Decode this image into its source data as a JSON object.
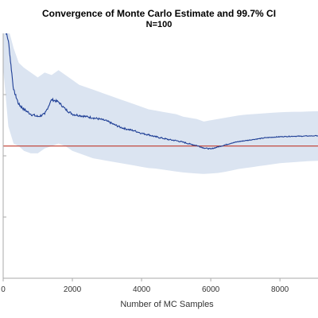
{
  "chart_data": {
    "type": "line",
    "title": "Convergence of Monte Carlo Estimate and 99.7% CI",
    "subtitle": "N=100",
    "xlabel": "Number of MC Samples",
    "ylabel": "",
    "xlim": [
      0,
      9100
    ],
    "xticks": [
      0,
      2000,
      4000,
      6000,
      8000
    ],
    "ylim": [
      0,
      1
    ],
    "grid": false,
    "legend": "none",
    "reference_line": {
      "y": 0.54
    },
    "series": [
      {
        "x": [
          0,
          150,
          300,
          450,
          600,
          800,
          1000,
          1200,
          1400,
          1600,
          1800,
          2000,
          2200,
          2400,
          2600,
          2800,
          3000,
          3200,
          3400,
          3600,
          3800,
          4000,
          4200,
          4400,
          4600,
          4800,
          5000,
          5200,
          5400,
          5600,
          5800,
          6000,
          6200,
          6400,
          6600,
          6800,
          7000,
          7200,
          7400,
          7600,
          7800,
          8000,
          8200,
          8400,
          8600,
          8800,
          9100
        ],
        "values": [
          1.05,
          0.97,
          0.77,
          0.71,
          0.69,
          0.67,
          0.66,
          0.67,
          0.73,
          0.72,
          0.69,
          0.67,
          0.665,
          0.66,
          0.655,
          0.65,
          0.642,
          0.628,
          0.616,
          0.608,
          0.602,
          0.592,
          0.586,
          0.578,
          0.572,
          0.566,
          0.562,
          0.556,
          0.548,
          0.542,
          0.532,
          0.528,
          0.536,
          0.544,
          0.552,
          0.558,
          0.562,
          0.566,
          0.57,
          0.574,
          0.576,
          0.578,
          0.579,
          0.58,
          0.58,
          0.581,
          0.582
        ]
      }
    ],
    "ci_band": {
      "x": [
        0,
        150,
        300,
        450,
        600,
        800,
        1000,
        1200,
        1400,
        1600,
        1800,
        2000,
        2200,
        2400,
        2600,
        2800,
        3000,
        3200,
        3400,
        3600,
        3800,
        4000,
        4200,
        4400,
        4600,
        4800,
        5000,
        5200,
        5400,
        5600,
        5800,
        6000,
        6200,
        6400,
        6600,
        6800,
        7000,
        7200,
        7400,
        7600,
        7800,
        8000,
        8200,
        8400,
        8600,
        8800,
        9100
      ],
      "upper": [
        1.06,
        1.02,
        0.94,
        0.88,
        0.86,
        0.84,
        0.82,
        0.84,
        0.83,
        0.85,
        0.83,
        0.81,
        0.79,
        0.78,
        0.77,
        0.76,
        0.75,
        0.74,
        0.73,
        0.72,
        0.71,
        0.7,
        0.69,
        0.685,
        0.68,
        0.675,
        0.67,
        0.66,
        0.655,
        0.65,
        0.64,
        0.645,
        0.65,
        0.655,
        0.66,
        0.665,
        0.668,
        0.67,
        0.672,
        0.674,
        0.676,
        0.678,
        0.679,
        0.68,
        0.68,
        0.681,
        0.682
      ],
      "lower": [
        0.86,
        0.62,
        0.55,
        0.54,
        0.52,
        0.51,
        0.51,
        0.53,
        0.54,
        0.55,
        0.54,
        0.52,
        0.51,
        0.5,
        0.49,
        0.485,
        0.48,
        0.475,
        0.47,
        0.465,
        0.46,
        0.455,
        0.45,
        0.448,
        0.444,
        0.44,
        0.436,
        0.432,
        0.43,
        0.428,
        0.426,
        0.428,
        0.43,
        0.434,
        0.44,
        0.446,
        0.45,
        0.454,
        0.458,
        0.462,
        0.466,
        0.47,
        0.472,
        0.474,
        0.476,
        0.478,
        0.48
      ]
    },
    "colors": {
      "line": "#1f3f96",
      "band": "#dbe4f1",
      "reference": "#c0392b",
      "axis": "#aaaaaa"
    }
  }
}
